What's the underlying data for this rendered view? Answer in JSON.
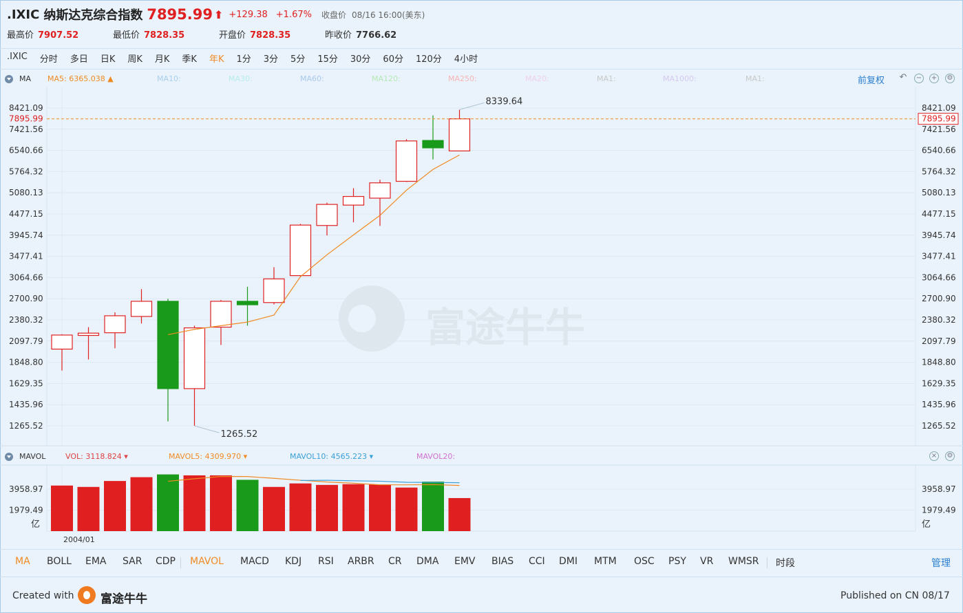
{
  "header": {
    "symbol": ".IXIC",
    "name": "纳斯达克综合指数",
    "price": "7895.99",
    "arrow": "⬆",
    "change": "+129.38",
    "change_pct": "+1.67%",
    "close_label": "收盘价",
    "close_time": "08/16 16:00(美东)"
  },
  "stats": [
    {
      "label": "最高价",
      "value": "7907.52"
    },
    {
      "label": "最低价",
      "value": "7828.35"
    },
    {
      "label": "开盘价",
      "value": "7828.35"
    },
    {
      "label": "昨收价",
      "value": "7766.62"
    }
  ],
  "periods": [
    ".IXIC",
    "分时",
    "多日",
    "日K",
    "周K",
    "月K",
    "季K",
    "年K",
    "1分",
    "3分",
    "5分",
    "15分",
    "30分",
    "60分",
    "120分",
    "4小时"
  ],
  "active_period": "年K",
  "ma_bar": {
    "title": "MA",
    "items": [
      {
        "label": "MA5: 6365.038 ▲",
        "color": "#f08a24"
      },
      {
        "label": "MA10:",
        "color": "#a8cfee"
      },
      {
        "label": "MA30:",
        "color": "#b6ecec"
      },
      {
        "label": "MA60:",
        "color": "#a8c8ee"
      },
      {
        "label": "MA120:",
        "color": "#b5e8b5"
      },
      {
        "label": "MA250:",
        "color": "#f5b5b5"
      },
      {
        "label": "MA20:",
        "color": "#f0d0ee"
      },
      {
        "label": "MA1:",
        "color": "#c8c8c8"
      },
      {
        "label": "MA1000:",
        "color": "#d5c8ee"
      },
      {
        "label": "MA1:",
        "color": "#c8c8c8"
      }
    ],
    "restore_label": "前复权"
  },
  "vol_bar": {
    "title": "MAVOL",
    "items": [
      {
        "label": "VOL: 3118.824",
        "color": "#e04040"
      },
      {
        "label": "MAVOL5: 4309.970",
        "color": "#f08a24"
      },
      {
        "label": "MAVOL10: 4565.223",
        "color": "#3aa0d8"
      },
      {
        "label": "MAVOL20:",
        "color": "#d070d0"
      }
    ]
  },
  "watermark": "富途牛牛",
  "colors": {
    "up": "#e02020",
    "down": "#1a9a1a",
    "ma5": "#f08a24",
    "mavol10": "#3aa0d8",
    "price_line": "#f08a24"
  },
  "chart_data": {
    "type": "candlestick",
    "price_axis_ticks": [
      "8421.09",
      "7421.56",
      "6540.66",
      "5764.32",
      "5080.13",
      "4477.15",
      "3945.74",
      "3477.41",
      "3064.66",
      "2700.90",
      "2380.32",
      "2097.79",
      "1848.80",
      "1629.35",
      "1435.96",
      "1265.52"
    ],
    "scale": "log",
    "current_price_label": "7895.99",
    "max_label": "8339.64",
    "min_label": "1265.52",
    "candles": [
      {
        "o": 2000,
        "c": 2175,
        "h": 2185,
        "l": 1760
      },
      {
        "o": 2170,
        "c": 2200,
        "h": 2280,
        "l": 1880
      },
      {
        "o": 2205,
        "c": 2440,
        "h": 2490,
        "l": 2010
      },
      {
        "o": 2430,
        "c": 2660,
        "h": 2860,
        "l": 2330
      },
      {
        "o": 2660,
        "c": 1580,
        "h": 2700,
        "l": 1300
      },
      {
        "o": 1580,
        "c": 2270,
        "h": 2300,
        "l": 1265.52
      },
      {
        "o": 2280,
        "c": 2660,
        "h": 2680,
        "l": 2050
      },
      {
        "o": 2660,
        "c": 2605,
        "h": 2900,
        "l": 2300
      },
      {
        "o": 2640,
        "c": 3040,
        "h": 3260,
        "l": 2610
      },
      {
        "o": 3100,
        "c": 4190,
        "h": 4220,
        "l": 3080
      },
      {
        "o": 4180,
        "c": 4740,
        "h": 4790,
        "l": 3940
      },
      {
        "o": 4720,
        "c": 4970,
        "h": 5220,
        "l": 4260
      },
      {
        "o": 4920,
        "c": 5390,
        "h": 5490,
        "l": 4170
      },
      {
        "o": 5440,
        "c": 6920,
        "h": 6990,
        "l": 5420
      },
      {
        "o": 6940,
        "c": 6640,
        "h": 8060,
        "l": 6200
      },
      {
        "o": 6520,
        "c": 7895.99,
        "h": 8339.64,
        "l": 6510
      }
    ],
    "ma5": [
      null,
      null,
      null,
      null,
      2180,
      2250,
      2300,
      2350,
      2450,
      3080,
      3510,
      3950,
      4440,
      5160,
      5840,
      6365.038
    ],
    "volume": {
      "ticks": [
        "3958.97",
        "1979.49"
      ],
      "unit": "亿",
      "x_label": "2004/01",
      "bars": [
        4300,
        4170,
        4730,
        5090,
        5350,
        5260,
        5260,
        4840,
        4170,
        4500,
        4360,
        4430,
        4400,
        4110,
        4670,
        3118.824
      ],
      "dirs": [
        "up",
        "up",
        "up",
        "up",
        "down",
        "up",
        "up",
        "down",
        "up",
        "up",
        "up",
        "up",
        "up",
        "up",
        "down",
        "up"
      ],
      "mavol5": [
        null,
        null,
        null,
        null,
        4700,
        4940,
        5160,
        5150,
        4980,
        4800,
        4630,
        4520,
        4370,
        4370,
        4390,
        4309.97
      ],
      "mavol10": [
        null,
        null,
        null,
        null,
        null,
        null,
        null,
        null,
        null,
        4780,
        4800,
        4750,
        4710,
        4610,
        4590,
        4565.223
      ]
    }
  },
  "indicators": [
    "MA",
    "BOLL",
    "EMA",
    "SAR",
    "CDP",
    "MAVOL",
    "MACD",
    "KDJ",
    "RSI",
    "ARBR",
    "CR",
    "DMA",
    "EMV",
    "BIAS",
    "CCI",
    "DMI",
    "MTM",
    "OSC",
    "PSY",
    "VR",
    "WMSR",
    "时段"
  ],
  "active_indicators": [
    "MA",
    "MAVOL"
  ],
  "manage_label": "管理",
  "footer": {
    "created_with": "Created with",
    "brand": "富途牛牛",
    "published": "Published on CN 08/17"
  }
}
